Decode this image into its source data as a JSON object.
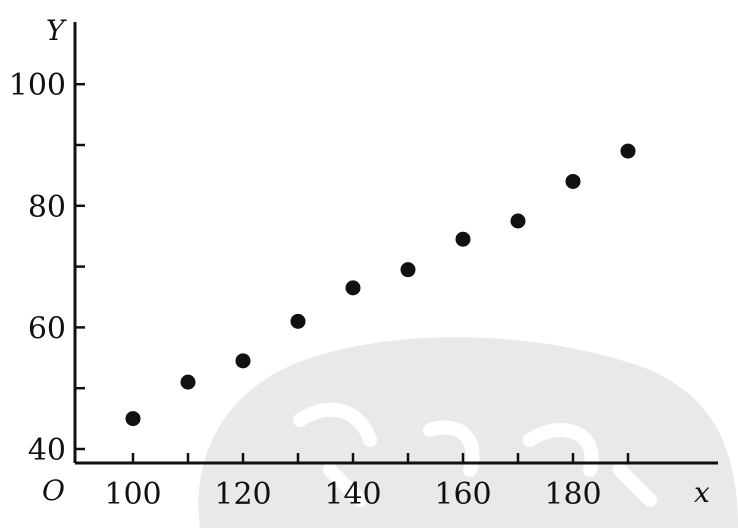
{
  "chart_data": {
    "type": "scatter",
    "xlabel": "x",
    "ylabel": "Y",
    "origin_label": "O",
    "xlim": [
      90,
      190
    ],
    "ylim": [
      40,
      110
    ],
    "x_ticks": [
      100,
      110,
      120,
      130,
      140,
      150,
      160,
      170,
      180,
      190
    ],
    "x_tick_labels": [
      "100",
      "120",
      "140",
      "160",
      "180"
    ],
    "y_ticks": [
      40,
      50,
      60,
      70,
      80,
      90,
      100
    ],
    "y_tick_labels": [
      "40",
      "60",
      "80",
      "100"
    ],
    "grid": false,
    "series": [
      {
        "x": [
          100,
          110,
          120,
          130,
          140,
          150,
          160,
          170,
          180,
          190
        ],
        "y": [
          45,
          51,
          54.5,
          61,
          66.5,
          69.5,
          74.5,
          77.5,
          84,
          89
        ]
      }
    ],
    "marker_color": "#111111"
  }
}
